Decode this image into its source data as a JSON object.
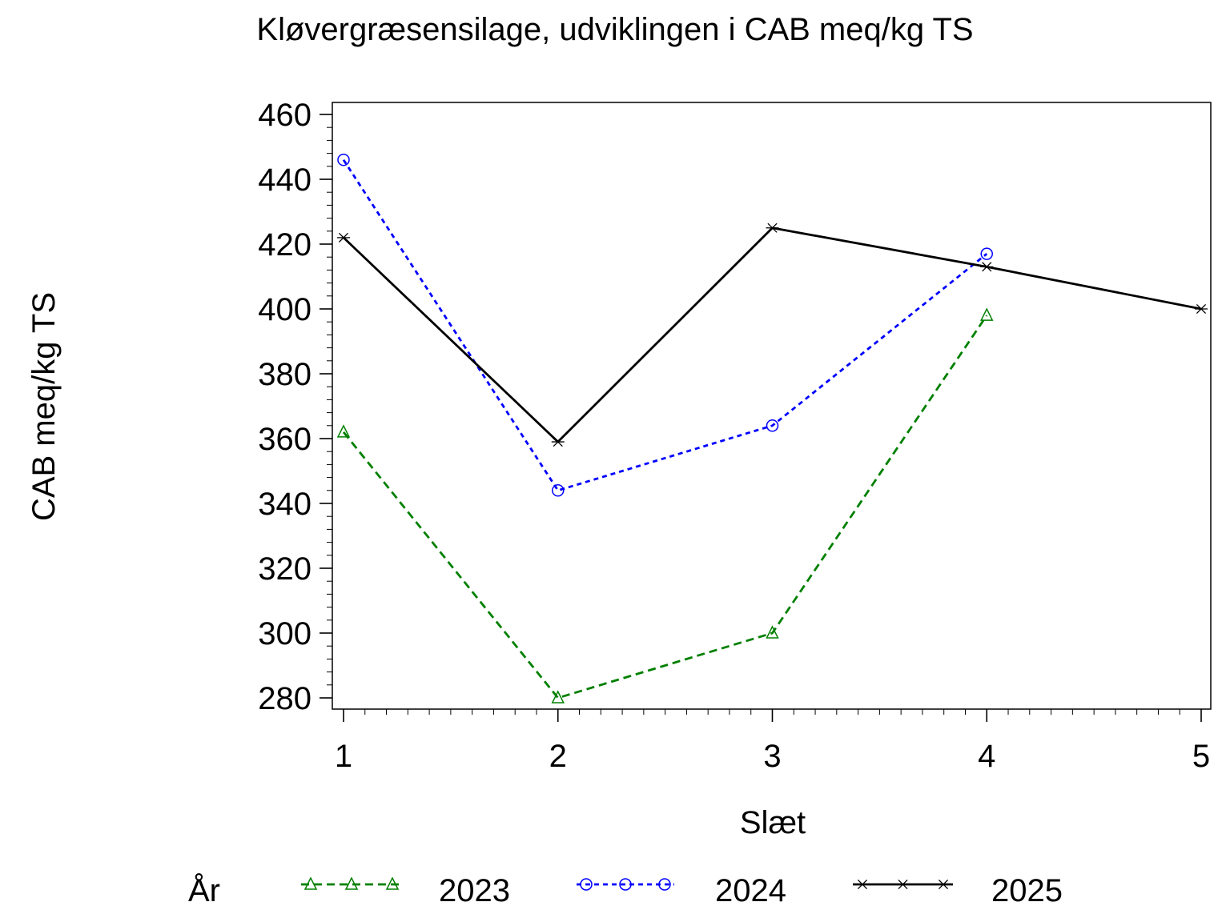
{
  "chart_data": {
    "type": "line",
    "title": "Kløvergræsensilage,  udviklingen  i  CAB  meq/kg  TS",
    "xlabel": "Slæt",
    "ylabel": "CAB  meq/kg  TS",
    "x": [
      1,
      2,
      3,
      4,
      5
    ],
    "xlim": [
      1,
      5
    ],
    "ylim": [
      280,
      460
    ],
    "x_ticks": [
      "1",
      "2",
      "3",
      "4",
      "5"
    ],
    "y_ticks": [
      "280",
      "300",
      "320",
      "340",
      "360",
      "380",
      "400",
      "420",
      "440",
      "460"
    ],
    "legend_title": "År",
    "legend_position": "bottom",
    "grid": false,
    "series": [
      {
        "name": "2023",
        "color": "#008000",
        "line_style": "dashed",
        "marker": "triangle",
        "points": [
          [
            1,
            362
          ],
          [
            2,
            280
          ],
          [
            3,
            300
          ],
          [
            4,
            398
          ]
        ]
      },
      {
        "name": "2024",
        "color": "#0000ff",
        "line_style": "dotted",
        "marker": "circle",
        "points": [
          [
            1,
            446
          ],
          [
            2,
            344
          ],
          [
            3,
            364
          ],
          [
            4,
            417
          ]
        ]
      },
      {
        "name": "2025",
        "color": "#000000",
        "line_style": "solid",
        "marker": "star",
        "points": [
          [
            1,
            422
          ],
          [
            2,
            359
          ],
          [
            3,
            425
          ],
          [
            4,
            413
          ],
          [
            5,
            400
          ]
        ]
      }
    ]
  }
}
